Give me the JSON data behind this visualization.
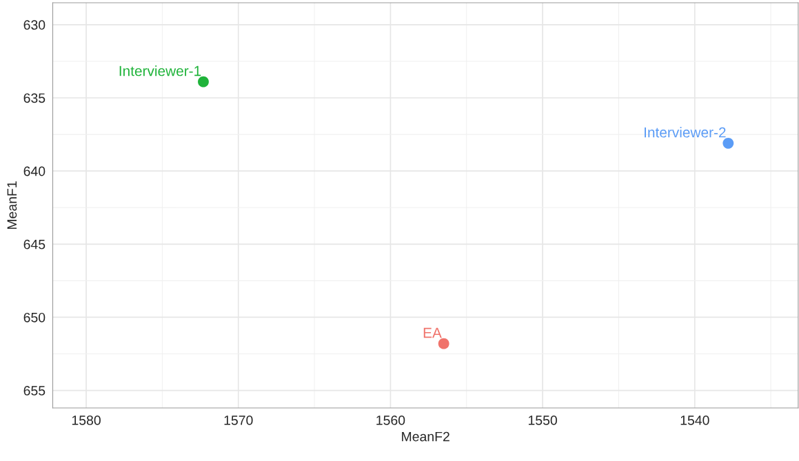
{
  "chart_data": {
    "type": "scatter",
    "xlabel": "MeanF2",
    "ylabel": "MeanF1",
    "xlim": [
      1582.2,
      1533.2
    ],
    "xticks": [
      1580,
      1570,
      1560,
      1550,
      1540
    ],
    "ylim": [
      656.2,
      628.5
    ],
    "yticks": [
      630,
      635,
      640,
      645,
      650,
      655
    ],
    "grid": true,
    "legend": false,
    "marker": "circle",
    "series": [
      {
        "name": "Interviewer-1",
        "color": "#1fb33a",
        "x": [
          1572.3
        ],
        "values": [
          633.9
        ]
      },
      {
        "name": "Interviewer-2",
        "color": "#5b9cf6",
        "x": [
          1537.8
        ],
        "values": [
          638.1
        ]
      },
      {
        "name": "EA",
        "color": "#f0736b",
        "x": [
          1556.5
        ],
        "values": [
          651.8
        ]
      }
    ]
  }
}
